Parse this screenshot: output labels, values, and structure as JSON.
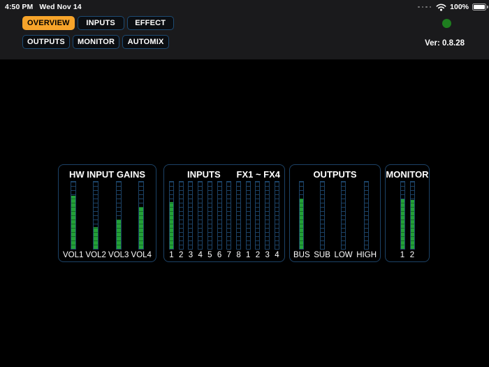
{
  "status_bar": {
    "time": "4:50 PM",
    "date": "Wed Nov 14",
    "battery": "100%",
    "icons": {
      "cellular": "cellular-signal-dots-icon",
      "wifi": "wifi-icon",
      "battery": "battery-icon"
    }
  },
  "nav": {
    "rows": [
      [
        {
          "label": "OVERVIEW",
          "active": true
        },
        {
          "label": "INPUTS",
          "active": false
        },
        {
          "label": "EFFECT",
          "active": false
        }
      ],
      [
        {
          "label": "OUTPUTS",
          "active": false
        },
        {
          "label": "MONITOR",
          "active": false
        },
        {
          "label": "AUTOMIX",
          "active": false
        }
      ]
    ]
  },
  "header": {
    "version": "Ver: 0.8.28",
    "status_dot": "connection-status-dot"
  },
  "meter_panels": [
    {
      "id": "hw-input-gains",
      "titles": [
        "HW INPUT GAINS"
      ],
      "meters": [
        {
          "label": "VOL1",
          "level": 79
        },
        {
          "label": "VOL2",
          "level": 32
        },
        {
          "label": "VOL3",
          "level": 44
        },
        {
          "label": "VOL4",
          "level": 62
        }
      ]
    },
    {
      "id": "inputs",
      "titles": [
        "INPUTS",
        "FX1 ~ FX4"
      ],
      "meters": [
        {
          "label": "1",
          "level": 70
        },
        {
          "label": "2",
          "level": 0
        },
        {
          "label": "3",
          "level": 0
        },
        {
          "label": "4",
          "level": 0
        },
        {
          "label": "5",
          "level": 0
        },
        {
          "label": "6",
          "level": 0
        },
        {
          "label": "7",
          "level": 0
        },
        {
          "label": "8",
          "level": 0
        },
        {
          "label": "1",
          "level": 0
        },
        {
          "label": "2",
          "level": 0
        },
        {
          "label": "3",
          "level": 0
        },
        {
          "label": "4",
          "level": 0
        }
      ]
    },
    {
      "id": "outputs",
      "titles": [
        "OUTPUTS"
      ],
      "meters": [
        {
          "label": "BUS",
          "level": 75
        },
        {
          "label": "SUB",
          "level": 0
        },
        {
          "label": "LOW",
          "level": 0
        },
        {
          "label": "HIGH",
          "level": 0
        }
      ]
    },
    {
      "id": "monitor",
      "titles": [
        "MONITOR"
      ],
      "meters": [
        {
          "label": "1",
          "level": 74
        },
        {
          "label": "2",
          "level": 73
        }
      ]
    }
  ],
  "colors": {
    "header_bg": "#1a1a1c",
    "accent_orange": "#f7a42a",
    "nav_bg": "#0b0e12",
    "nav_border": "#1d4b73",
    "panel_border": "#1c4266",
    "meter_blue": "#1c4266",
    "meter_green": "#23a038",
    "meter_green_dark": "#126b24",
    "status_dot_green": "#1e7e1f"
  }
}
